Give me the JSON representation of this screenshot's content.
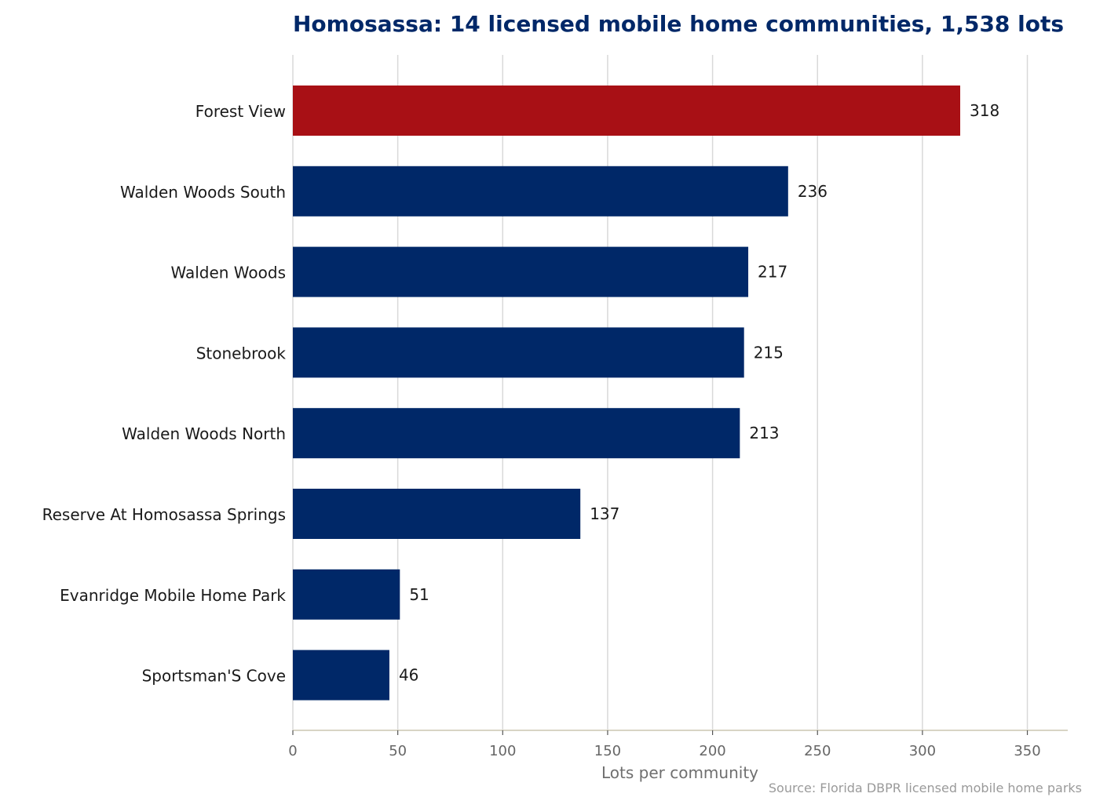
{
  "chart_data": {
    "type": "bar",
    "orientation": "horizontal",
    "title": "Homosassa: 14 licensed mobile home communities, 1,538 lots",
    "xlabel": "Lots per community",
    "ylabel": "",
    "source": "Source: Florida DBPR licensed mobile home parks",
    "categories": [
      "Forest View",
      "Walden Woods South",
      "Walden Woods",
      "Stonebrook",
      "Walden Woods North",
      "Reserve At Homosassa Springs",
      "Evanridge Mobile Home Park",
      "Sportsman'S Cove"
    ],
    "values": [
      318,
      236,
      217,
      215,
      213,
      137,
      51,
      46
    ],
    "highlight_index": 0,
    "xlim": [
      0,
      370
    ],
    "xticks": [
      0,
      50,
      100,
      150,
      200,
      250,
      300,
      350
    ],
    "grid": "vertical",
    "colors": {
      "bar": "#002868",
      "highlight": "#a81015",
      "title": "#002868",
      "grid": "#d9d9d9",
      "axis": "#d8d4c4"
    }
  }
}
